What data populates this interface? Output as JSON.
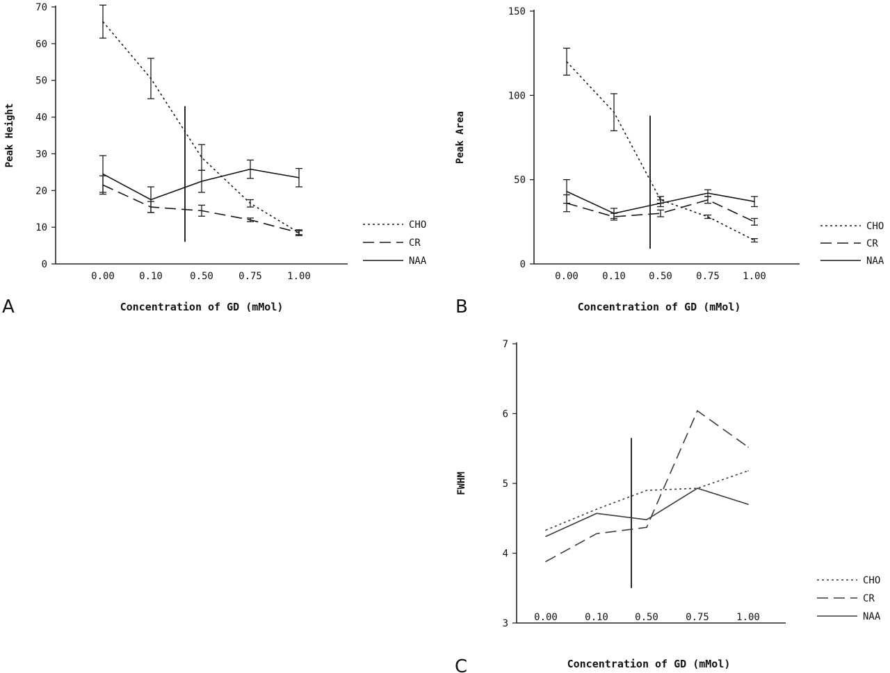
{
  "chart_data": [
    {
      "panel": "A",
      "type": "line",
      "ylabel": "Peak Height",
      "xlabel": "Concentration of GD (mMol)",
      "categories": [
        "0.00",
        "0.10",
        "0.50",
        "0.75",
        "1.00"
      ],
      "yticks": [
        "0",
        "10",
        "20",
        "30",
        "40",
        "50",
        "60",
        "70"
      ],
      "ylim": [
        0,
        70
      ],
      "error_bars": true,
      "vertical_marker": {
        "between": [
          "0.10",
          "0.50"
        ],
        "from": 6,
        "to": 43
      },
      "legend_position": "right",
      "series": [
        {
          "name": "CHO",
          "style": "dotted",
          "values": [
            66,
            50.5,
            29,
            16.5,
            8.5
          ],
          "err": [
            4.5,
            5.5,
            3.5,
            1.0,
            0.8
          ]
        },
        {
          "name": "CR",
          "style": "dashed",
          "values": [
            21.5,
            15.5,
            14.5,
            12,
            8.5
          ],
          "err": [
            2.5,
            1.5,
            1.5,
            0.5,
            0.5
          ]
        },
        {
          "name": "NAA",
          "style": "solid",
          "values": [
            24.5,
            17.5,
            22.5,
            25.8,
            23.5
          ],
          "err": [
            5.0,
            3.5,
            3.0,
            2.5,
            2.5
          ]
        }
      ]
    },
    {
      "panel": "B",
      "type": "line",
      "ylabel": "Peak Area",
      "xlabel": "Concentration of GD (mMol)",
      "categories": [
        "0.00",
        "0.10",
        "0.50",
        "0.75",
        "1.00"
      ],
      "yticks": [
        "0",
        "50",
        "100",
        "150"
      ],
      "ylim": [
        0,
        150
      ],
      "error_bars": true,
      "vertical_marker": {
        "between": [
          "0.10",
          "0.50"
        ],
        "from": 9,
        "to": 88
      },
      "legend_position": "right",
      "series": [
        {
          "name": "CHO",
          "style": "dotted",
          "values": [
            120,
            90,
            38,
            28,
            14
          ],
          "err": [
            8,
            11,
            2,
            1,
            1
          ]
        },
        {
          "name": "CR",
          "style": "dashed",
          "values": [
            36,
            28,
            30,
            38,
            25
          ],
          "err": [
            5,
            2,
            2,
            2,
            2
          ]
        },
        {
          "name": "NAA",
          "style": "solid",
          "values": [
            43,
            30,
            36,
            42,
            37
          ],
          "err": [
            7,
            3,
            2,
            2,
            3
          ]
        }
      ]
    },
    {
      "panel": "C",
      "type": "line",
      "ylabel": "FWHM",
      "xlabel": "Concentration of GD (mMol)",
      "categories": [
        "0.00",
        "0.10",
        "0.50",
        "0.75",
        "1.00"
      ],
      "yticks": [
        "3",
        "4",
        "5",
        "6",
        "7"
      ],
      "ylim": [
        3,
        7
      ],
      "error_bars": false,
      "vertical_marker": {
        "between": [
          "0.10",
          "0.50"
        ],
        "from": 3.5,
        "to": 5.65
      },
      "legend_position": "bottom-right",
      "series": [
        {
          "name": "CHO",
          "style": "dotted",
          "values": [
            4.33,
            4.63,
            4.9,
            4.93,
            5.18
          ]
        },
        {
          "name": "CR",
          "style": "dashed",
          "values": [
            3.88,
            4.28,
            4.37,
            6.04,
            5.52
          ]
        },
        {
          "name": "NAA",
          "style": "solid",
          "values": [
            4.24,
            4.57,
            4.48,
            4.93,
            4.7
          ]
        }
      ]
    }
  ]
}
